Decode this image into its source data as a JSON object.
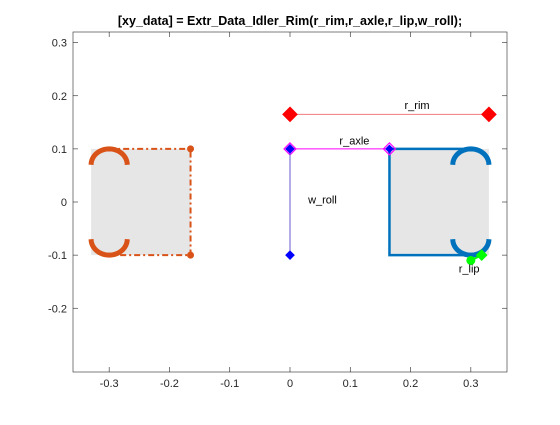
{
  "chart_data": {
    "type": "diagram-plot",
    "title": "[xy_data] = Extr_Data_Idler_Rim(r_rim,r_axle,r_lip,w_roll);",
    "xlim": [
      -0.36,
      0.36
    ],
    "ylim": [
      -0.32,
      0.32
    ],
    "xticks": [
      -0.3,
      -0.2,
      -0.1,
      0,
      0.1,
      0.2,
      0.3
    ],
    "xtick_labels": [
      "-0.3",
      "-0.2",
      "-0.1",
      "0",
      "0.1",
      "0.2",
      "0.3"
    ],
    "yticks": [
      -0.2,
      -0.1,
      0,
      0.1,
      0.2,
      0.3
    ],
    "ytick_labels": [
      "-0.2",
      "-0.1",
      "0",
      "0.1",
      "0.2",
      "0.3"
    ],
    "grid": false,
    "params": {
      "r_rim": 0.33,
      "r_axle": 0.165,
      "r_lip": 0.3,
      "w_roll": 0.1,
      "lip_radius": 0.03
    },
    "colors": {
      "rim_fill": "#e6e6e6",
      "right_outline": "#0072bd",
      "left_outline": "#d95319",
      "dim_rim": "#ff0000",
      "dim_rim_line": "#f07a80",
      "dim_axle": "#ff00ff",
      "dim_roll": "#6a5acd",
      "roll_marker": "#0000ff",
      "lip_marker": "#00ff00"
    },
    "annotations": [
      {
        "text": "r_rim",
        "x": 0.19,
        "y": 0.175
      },
      {
        "text": "r_axle",
        "x": 0.082,
        "y": 0.108
      },
      {
        "text": "w_roll",
        "x": 0.03,
        "y": -0.003
      },
      {
        "text": "r_lip",
        "x": 0.28,
        "y": -0.133
      }
    ],
    "series": [
      {
        "role": "rim-fill-right",
        "x": [
          0.165,
          0.33,
          0.33,
          0.165
        ],
        "y": [
          0.1,
          0.1,
          -0.1,
          -0.1
        ]
      },
      {
        "role": "rim-fill-left",
        "x": [
          -0.33,
          -0.165,
          -0.165,
          -0.33
        ],
        "y": [
          0.1,
          0.1,
          -0.1,
          -0.1
        ]
      },
      {
        "role": "right-outline",
        "x": [
          0.3,
          0.165,
          0.165,
          0.3
        ],
        "y": [
          0.1,
          0.1,
          -0.1,
          -0.1
        ]
      },
      {
        "role": "left-outline",
        "x": [
          -0.3,
          -0.165,
          -0.165,
          -0.3
        ],
        "y": [
          0.1,
          0.1,
          -0.1,
          -0.1
        ]
      },
      {
        "role": "lip-arcs",
        "centers": [
          [
            0.3,
            0.07
          ],
          [
            0.3,
            -0.07
          ],
          [
            -0.3,
            0.07
          ],
          [
            -0.3,
            -0.07
          ]
        ]
      },
      {
        "role": "r_rim-dimension",
        "x": [
          0,
          0.33
        ],
        "y": [
          0.165,
          0.165
        ]
      },
      {
        "role": "r_axle-dimension",
        "x": [
          0,
          0.165
        ],
        "y": [
          0.1,
          0.1
        ]
      },
      {
        "role": "w_roll-dimension",
        "x": [
          0,
          0
        ],
        "y": [
          0.1,
          -0.1
        ]
      },
      {
        "role": "r_lip-dimension",
        "x": [
          0.3,
          0.318
        ],
        "y": [
          -0.11,
          -0.1
        ]
      }
    ]
  }
}
